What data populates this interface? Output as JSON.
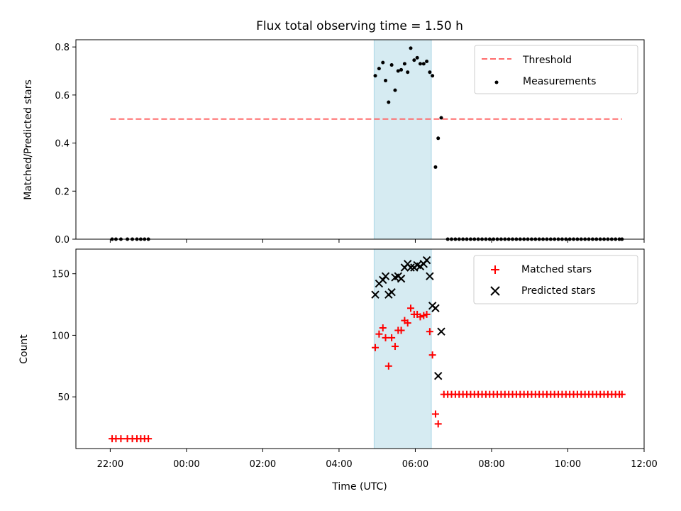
{
  "chart_data": [
    {
      "type": "scatter",
      "title": "Flux total observing time = 1.50 h",
      "ylabel": "Matched/Predicted stars",
      "ylim": [
        0,
        0.83
      ],
      "yticks": [
        "0.0",
        "0.2",
        "0.4",
        "0.6",
        "0.8"
      ],
      "yticks_values": [
        0,
        0.2,
        0.4,
        0.6,
        0.8
      ],
      "highlight_span_hours": [
        4.92,
        6.42
      ],
      "highlight_color": "#add8e6",
      "threshold": {
        "name": "Threshold",
        "value": 0.5,
        "x_range_hours": [
          -2.0,
          11.42
        ],
        "color": "#ff6b6b"
      },
      "legend": {
        "position": "top-right",
        "entries": [
          "Threshold",
          "Measurements"
        ]
      },
      "series": [
        {
          "name": "Measurements",
          "color": "#000000",
          "x_hours": [
            -1.95,
            -1.85,
            -1.72,
            -1.55,
            -1.42,
            -1.3,
            -1.2,
            -1.1,
            -1.0,
            4.95,
            5.05,
            5.15,
            5.22,
            5.3,
            5.38,
            5.47,
            5.55,
            5.63,
            5.72,
            5.8,
            5.88,
            5.97,
            6.05,
            6.13,
            6.22,
            6.3,
            6.38,
            6.45,
            6.53,
            6.6,
            6.68,
            6.85,
            6.95,
            7.05,
            7.15,
            7.25,
            7.35,
            7.45,
            7.55,
            7.65,
            7.75,
            7.85,
            7.95,
            8.05,
            8.15,
            8.25,
            8.35,
            8.45,
            8.55,
            8.65,
            8.75,
            8.85,
            8.95,
            9.05,
            9.15,
            9.25,
            9.35,
            9.45,
            9.55,
            9.65,
            9.75,
            9.85,
            9.95,
            10.05,
            10.15,
            10.25,
            10.35,
            10.45,
            10.55,
            10.65,
            10.75,
            10.85,
            10.95,
            11.05,
            11.15,
            11.25,
            11.35,
            11.42
          ],
          "y": [
            0,
            0,
            0,
            0,
            0,
            0,
            0,
            0,
            0,
            0.68,
            0.71,
            0.735,
            0.66,
            0.57,
            0.725,
            0.62,
            0.7,
            0.705,
            0.73,
            0.695,
            0.795,
            0.745,
            0.755,
            0.73,
            0.73,
            0.74,
            0.695,
            0.68,
            0.3,
            0.42,
            0.505,
            0,
            0,
            0,
            0,
            0,
            0,
            0,
            0,
            0,
            0,
            0,
            0,
            0,
            0,
            0,
            0,
            0,
            0,
            0,
            0,
            0,
            0,
            0,
            0,
            0,
            0,
            0,
            0,
            0,
            0,
            0,
            0,
            0,
            0,
            0,
            0,
            0,
            0,
            0,
            0,
            0,
            0,
            0,
            0,
            0,
            0,
            0
          ]
        }
      ]
    },
    {
      "type": "scatter",
      "xlabel": "Time (UTC)",
      "ylabel": "Count",
      "ylim": [
        8,
        170
      ],
      "yticks": [
        "50",
        "100",
        "150"
      ],
      "yticks_values": [
        50,
        100,
        150
      ],
      "xlim_hours": [
        -2.9,
        12.0
      ],
      "xticks": [
        "22:00",
        "00:00",
        "02:00",
        "04:00",
        "06:00",
        "08:00",
        "10:00",
        "12:00"
      ],
      "xticks_hours": [
        -2,
        0,
        2,
        4,
        6,
        8,
        10,
        12
      ],
      "highlight_span_hours": [
        4.92,
        6.42
      ],
      "highlight_color": "#add8e6",
      "legend": {
        "position": "top-right",
        "entries": [
          "Matched stars",
          "Predicted stars"
        ]
      },
      "series": [
        {
          "name": "Matched stars",
          "color": "#ff0000",
          "marker": "plus",
          "x_hours": [
            -1.95,
            -1.85,
            -1.72,
            -1.55,
            -1.42,
            -1.3,
            -1.2,
            -1.1,
            -1.0,
            4.95,
            5.05,
            5.15,
            5.22,
            5.3,
            5.38,
            5.47,
            5.55,
            5.63,
            5.72,
            5.8,
            5.88,
            5.97,
            6.05,
            6.13,
            6.22,
            6.3,
            6.38,
            6.45,
            6.53,
            6.6,
            6.75,
            6.85,
            6.95,
            7.05,
            7.15,
            7.25,
            7.35,
            7.45,
            7.55,
            7.65,
            7.75,
            7.85,
            7.95,
            8.05,
            8.15,
            8.25,
            8.35,
            8.45,
            8.55,
            8.65,
            8.75,
            8.85,
            8.95,
            9.05,
            9.15,
            9.25,
            9.35,
            9.45,
            9.55,
            9.65,
            9.75,
            9.85,
            9.95,
            10.05,
            10.15,
            10.25,
            10.35,
            10.45,
            10.55,
            10.65,
            10.75,
            10.85,
            10.95,
            11.05,
            11.15,
            11.25,
            11.35,
            11.42
          ],
          "y": [
            16,
            16,
            16,
            16,
            16,
            16,
            16,
            16,
            16,
            90,
            101,
            106,
            98,
            75,
            98,
            91,
            104,
            104,
            112,
            110,
            122,
            117,
            117,
            115,
            116,
            117,
            103,
            84,
            36,
            28,
            52,
            52,
            52,
            52,
            52,
            52,
            52,
            52,
            52,
            52,
            52,
            52,
            52,
            52,
            52,
            52,
            52,
            52,
            52,
            52,
            52,
            52,
            52,
            52,
            52,
            52,
            52,
            52,
            52,
            52,
            52,
            52,
            52,
            52,
            52,
            52,
            52,
            52,
            52,
            52,
            52,
            52,
            52,
            52,
            52,
            52,
            52,
            52
          ]
        },
        {
          "name": "Predicted stars",
          "color": "#000000",
          "marker": "x",
          "x_hours": [
            4.95,
            5.05,
            5.15,
            5.22,
            5.3,
            5.38,
            5.47,
            5.55,
            5.63,
            5.72,
            5.8,
            5.88,
            5.97,
            6.05,
            6.13,
            6.22,
            6.3,
            6.38,
            6.45,
            6.53,
            6.6,
            6.68
          ],
          "y": [
            133,
            142,
            145,
            148,
            133,
            135,
            147,
            148,
            146,
            155,
            158,
            155,
            155,
            157,
            156,
            158,
            161,
            148,
            124,
            122,
            67,
            103
          ]
        }
      ]
    }
  ]
}
